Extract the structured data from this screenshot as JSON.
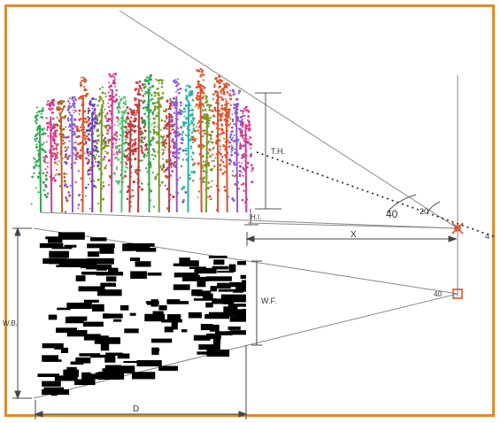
{
  "labels": {
    "tree_height": "T.H.",
    "instrument_height": "H.I.",
    "horizontal_distance": "X",
    "angle_large": "40",
    "angle_small": "20",
    "angle_side": "4",
    "width_front": "W.F.",
    "width_back": "W.B.",
    "angle_projection": "40",
    "depth": "D"
  },
  "colors": {
    "frame": "#e08a2a",
    "sensor": "#e0502a",
    "lines": "#777777",
    "scan": "#000000"
  },
  "icons": {
    "sensor_top": "sensor-cross-icon",
    "sensor_bottom": "sensor-square-icon"
  }
}
